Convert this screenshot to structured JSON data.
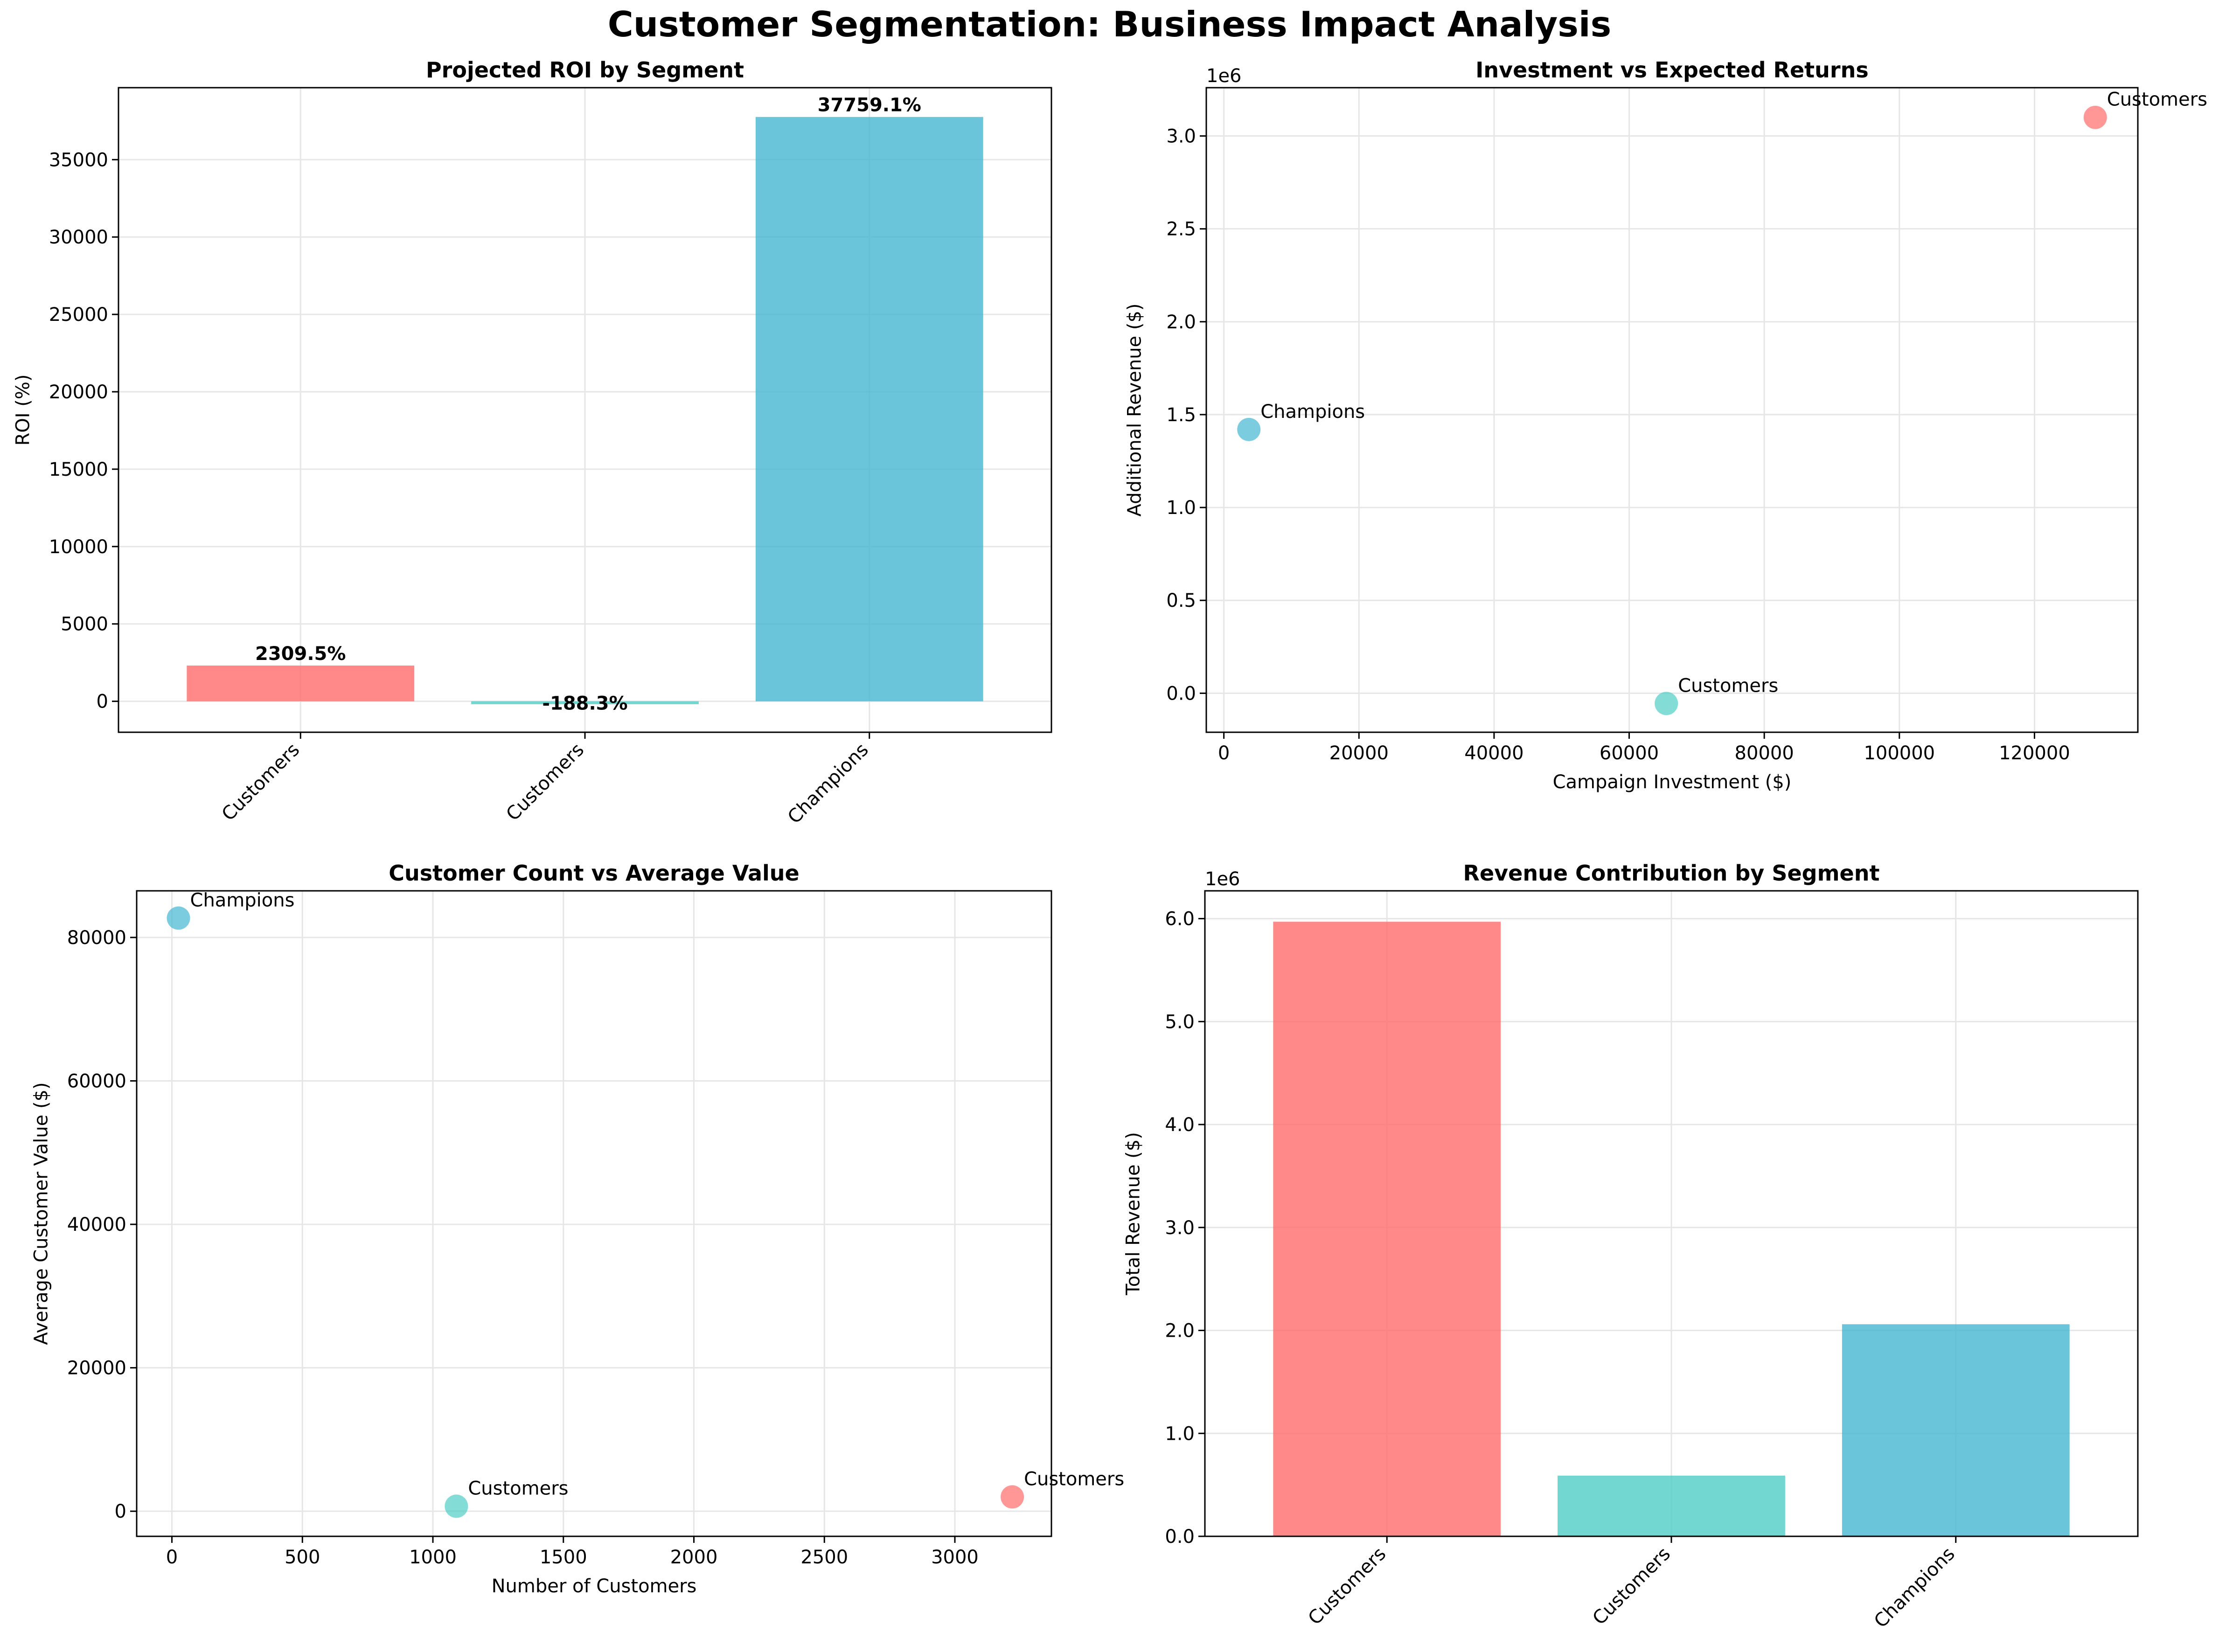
{
  "suptitle": "Customer Segmentation: Business Impact Analysis",
  "colors": [
    "#ff6b6b",
    "#4ecdc4",
    "#45b7d1"
  ],
  "chart_data": [
    {
      "type": "bar",
      "title": "Projected ROI by Segment",
      "xlabel": "",
      "ylabel": "ROI (%)",
      "categories": [
        "Customers",
        "Customers",
        "Champions"
      ],
      "values": [
        2309.5,
        -188.3,
        37759.1
      ],
      "data_labels": [
        "2309.5%",
        "-188.3%",
        "37759.1%"
      ],
      "ylim": [
        -2000,
        39650
      ],
      "yticks": [
        0,
        5000,
        10000,
        15000,
        20000,
        25000,
        30000,
        35000
      ],
      "grid": true
    },
    {
      "type": "scatter",
      "title": "Investment vs Expected Returns",
      "xlabel": "Campaign Investment ($)",
      "ylabel": "Additional Revenue ($)",
      "y_offset_label": "1e6",
      "y_scale": 1000000,
      "points": [
        {
          "label": "Customers",
          "x": 129000,
          "y": 3100000
        },
        {
          "label": "Customers",
          "x": 65500,
          "y": -55000
        },
        {
          "label": "Champions",
          "x": 3700,
          "y": 1420000
        }
      ],
      "xlim": [
        -2600,
        135300
      ],
      "ylim": [
        -210000,
        3260000
      ],
      "xticks": [
        0,
        20000,
        40000,
        60000,
        80000,
        100000,
        120000
      ],
      "yticks": [
        0,
        500000,
        1000000,
        1500000,
        2000000,
        2500000,
        3000000
      ],
      "grid": true
    },
    {
      "type": "scatter",
      "title": "Customer Count vs Average Value",
      "xlabel": "Number of Customers",
      "ylabel": "Average Customer Value ($)",
      "points": [
        {
          "label": "Customers",
          "x": 3220,
          "y": 2000
        },
        {
          "label": "Customers",
          "x": 1090,
          "y": 700
        },
        {
          "label": "Champions",
          "x": 25,
          "y": 82700
        }
      ],
      "xlim": [
        -135,
        3370
      ],
      "ylim": [
        -3500,
        86500
      ],
      "xticks": [
        0,
        500,
        1000,
        1500,
        2000,
        2500,
        3000
      ],
      "yticks": [
        0,
        20000,
        40000,
        60000,
        80000
      ],
      "grid": true
    },
    {
      "type": "bar",
      "title": "Revenue Contribution by Segment",
      "xlabel": "",
      "ylabel": "Total Revenue ($)",
      "y_offset_label": "1e6",
      "y_scale": 1000000,
      "categories": [
        "Customers",
        "Customers",
        "Champions"
      ],
      "values": [
        5970000,
        590000,
        2060000
      ],
      "ylim": [
        0,
        6270000
      ],
      "yticks": [
        0,
        1000000,
        2000000,
        3000000,
        4000000,
        5000000,
        6000000
      ],
      "grid": true
    }
  ]
}
